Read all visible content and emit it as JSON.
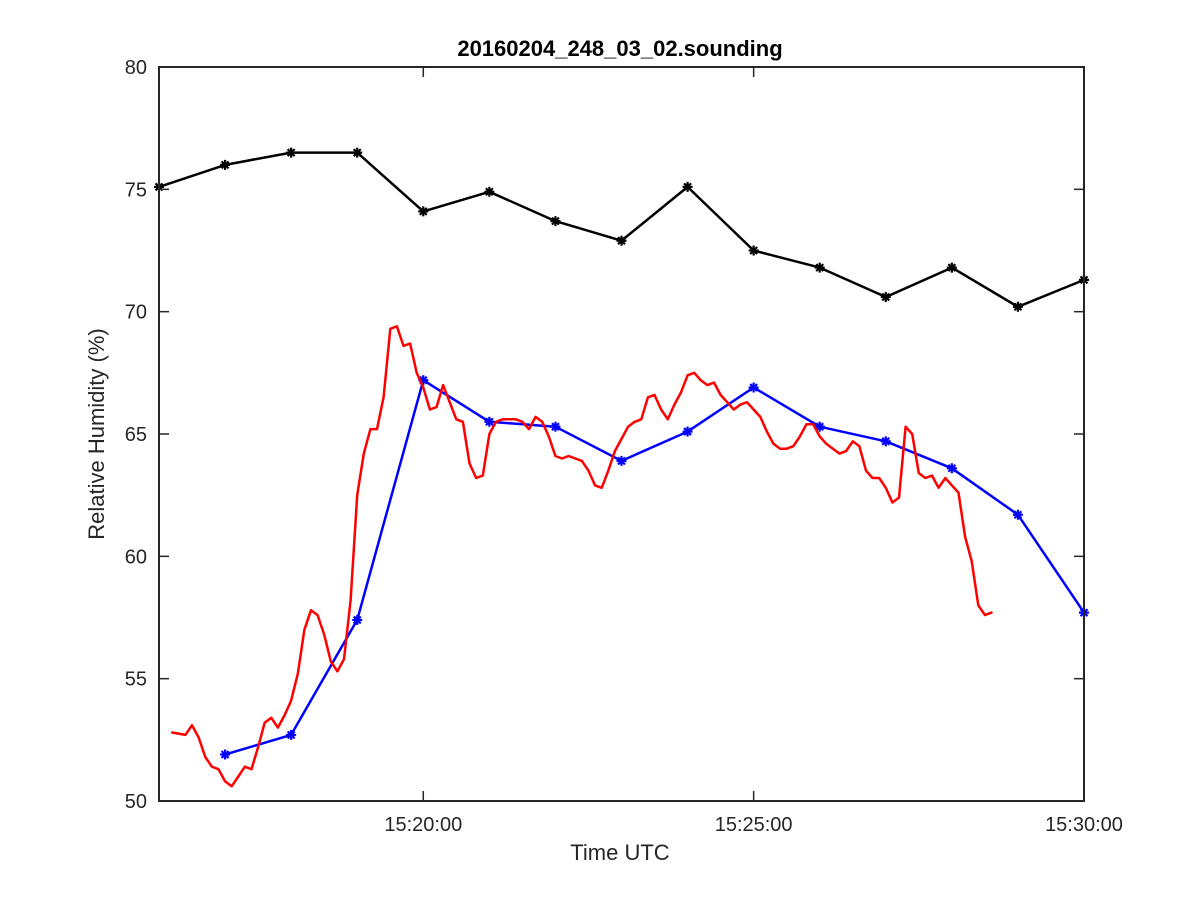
{
  "chart_data": {
    "type": "line",
    "title": "20160204_248_03_02.sounding",
    "xlabel": "Time UTC",
    "ylabel": "Relative Humidity (%)",
    "xlim": [
      "15:16:00",
      "15:30:00"
    ],
    "ylim": [
      50,
      80
    ],
    "x_ticks": [
      "15:20:00",
      "15:25:00",
      "15:30:00"
    ],
    "y_ticks": [
      50,
      55,
      60,
      65,
      70,
      75,
      80
    ],
    "grid": false,
    "legend": "none",
    "series": [
      {
        "color": "#000000",
        "style": "line-marker",
        "points": [
          [
            "15:16:00",
            75.1
          ],
          [
            "15:17:00",
            76.0
          ],
          [
            "15:18:00",
            76.5
          ],
          [
            "15:19:00",
            76.5
          ],
          [
            "15:20:00",
            74.1
          ],
          [
            "15:21:00",
            74.9
          ],
          [
            "15:22:00",
            73.7
          ],
          [
            "15:23:00",
            72.9
          ],
          [
            "15:24:00",
            75.1
          ],
          [
            "15:25:00",
            72.5
          ],
          [
            "15:26:00",
            71.8
          ],
          [
            "15:27:00",
            70.6
          ],
          [
            "15:28:00",
            71.8
          ],
          [
            "15:29:00",
            70.2
          ],
          [
            "15:30:00",
            71.3
          ]
        ]
      },
      {
        "color": "#0000ff",
        "style": "line-marker",
        "points": [
          [
            "15:17:00",
            51.9
          ],
          [
            "15:18:00",
            52.7
          ],
          [
            "15:19:00",
            57.4
          ],
          [
            "15:20:00",
            67.2
          ],
          [
            "15:21:00",
            65.5
          ],
          [
            "15:22:00",
            65.3
          ],
          [
            "15:23:00",
            63.9
          ],
          [
            "15:24:00",
            65.1
          ],
          [
            "15:25:00",
            66.9
          ],
          [
            "15:26:00",
            65.3
          ],
          [
            "15:27:00",
            64.7
          ],
          [
            "15:28:00",
            63.6
          ],
          [
            "15:29:00",
            61.7
          ],
          [
            "15:30:00",
            57.7
          ]
        ]
      },
      {
        "color": "#ff0000",
        "style": "line",
        "points": [
          [
            "15:16:12",
            52.8
          ],
          [
            "15:16:24",
            52.7
          ],
          [
            "15:16:30",
            53.1
          ],
          [
            "15:16:36",
            52.6
          ],
          [
            "15:16:42",
            51.8
          ],
          [
            "15:16:48",
            51.4
          ],
          [
            "15:16:54",
            51.3
          ],
          [
            "15:17:00",
            50.8
          ],
          [
            "15:17:06",
            50.6
          ],
          [
            "15:17:12",
            51.0
          ],
          [
            "15:17:18",
            51.4
          ],
          [
            "15:17:24",
            51.3
          ],
          [
            "15:17:30",
            52.2
          ],
          [
            "15:17:36",
            53.2
          ],
          [
            "15:17:42",
            53.4
          ],
          [
            "15:17:48",
            53.0
          ],
          [
            "15:17:54",
            53.5
          ],
          [
            "15:18:00",
            54.1
          ],
          [
            "15:18:06",
            55.2
          ],
          [
            "15:18:12",
            57.0
          ],
          [
            "15:18:18",
            57.8
          ],
          [
            "15:18:24",
            57.6
          ],
          [
            "15:18:30",
            56.8
          ],
          [
            "15:18:36",
            55.7
          ],
          [
            "15:18:42",
            55.3
          ],
          [
            "15:18:48",
            55.8
          ],
          [
            "15:18:54",
            58.2
          ],
          [
            "15:19:00",
            62.5
          ],
          [
            "15:19:06",
            64.2
          ],
          [
            "15:19:12",
            65.2
          ],
          [
            "15:19:18",
            65.2
          ],
          [
            "15:19:24",
            66.5
          ],
          [
            "15:19:30",
            69.3
          ],
          [
            "15:19:36",
            69.4
          ],
          [
            "15:19:42",
            68.6
          ],
          [
            "15:19:48",
            68.7
          ],
          [
            "15:19:54",
            67.5
          ],
          [
            "15:20:00",
            66.9
          ],
          [
            "15:20:06",
            66.0
          ],
          [
            "15:20:12",
            66.1
          ],
          [
            "15:20:18",
            67.0
          ],
          [
            "15:20:24",
            66.3
          ],
          [
            "15:20:30",
            65.6
          ],
          [
            "15:20:36",
            65.5
          ],
          [
            "15:20:42",
            63.8
          ],
          [
            "15:20:48",
            63.2
          ],
          [
            "15:20:54",
            63.3
          ],
          [
            "15:21:00",
            65.0
          ],
          [
            "15:21:06",
            65.5
          ],
          [
            "15:21:12",
            65.6
          ],
          [
            "15:21:18",
            65.6
          ],
          [
            "15:21:24",
            65.6
          ],
          [
            "15:21:30",
            65.5
          ],
          [
            "15:21:36",
            65.2
          ],
          [
            "15:21:42",
            65.7
          ],
          [
            "15:21:48",
            65.5
          ],
          [
            "15:21:54",
            64.9
          ],
          [
            "15:22:00",
            64.1
          ],
          [
            "15:22:06",
            64.0
          ],
          [
            "15:22:12",
            64.1
          ],
          [
            "15:22:18",
            64.0
          ],
          [
            "15:22:24",
            63.9
          ],
          [
            "15:22:30",
            63.5
          ],
          [
            "15:22:36",
            62.9
          ],
          [
            "15:22:42",
            62.8
          ],
          [
            "15:22:48",
            63.5
          ],
          [
            "15:22:54",
            64.3
          ],
          [
            "15:23:00",
            64.8
          ],
          [
            "15:23:06",
            65.3
          ],
          [
            "15:23:12",
            65.5
          ],
          [
            "15:23:18",
            65.6
          ],
          [
            "15:23:24",
            66.5
          ],
          [
            "15:23:30",
            66.6
          ],
          [
            "15:23:36",
            66.0
          ],
          [
            "15:23:42",
            65.6
          ],
          [
            "15:23:48",
            66.2
          ],
          [
            "15:23:54",
            66.7
          ],
          [
            "15:24:00",
            67.4
          ],
          [
            "15:24:06",
            67.5
          ],
          [
            "15:24:12",
            67.2
          ],
          [
            "15:24:18",
            67.0
          ],
          [
            "15:24:24",
            67.1
          ],
          [
            "15:24:30",
            66.6
          ],
          [
            "15:24:36",
            66.3
          ],
          [
            "15:24:42",
            66.0
          ],
          [
            "15:24:48",
            66.2
          ],
          [
            "15:24:54",
            66.3
          ],
          [
            "15:25:00",
            66.0
          ],
          [
            "15:25:06",
            65.7
          ],
          [
            "15:25:12",
            65.1
          ],
          [
            "15:25:18",
            64.6
          ],
          [
            "15:25:24",
            64.4
          ],
          [
            "15:25:30",
            64.4
          ],
          [
            "15:25:36",
            64.5
          ],
          [
            "15:25:42",
            64.9
          ],
          [
            "15:25:48",
            65.4
          ],
          [
            "15:25:54",
            65.4
          ],
          [
            "15:26:00",
            64.9
          ],
          [
            "15:26:06",
            64.6
          ],
          [
            "15:26:12",
            64.4
          ],
          [
            "15:26:18",
            64.2
          ],
          [
            "15:26:24",
            64.3
          ],
          [
            "15:26:30",
            64.7
          ],
          [
            "15:26:36",
            64.5
          ],
          [
            "15:26:42",
            63.5
          ],
          [
            "15:26:48",
            63.2
          ],
          [
            "15:26:54",
            63.2
          ],
          [
            "15:27:00",
            62.8
          ],
          [
            "15:27:06",
            62.2
          ],
          [
            "15:27:12",
            62.4
          ],
          [
            "15:27:18",
            65.3
          ],
          [
            "15:27:24",
            65.0
          ],
          [
            "15:27:30",
            63.4
          ],
          [
            "15:27:36",
            63.2
          ],
          [
            "15:27:42",
            63.3
          ],
          [
            "15:27:48",
            62.8
          ],
          [
            "15:27:54",
            63.2
          ],
          [
            "15:28:00",
            62.9
          ],
          [
            "15:28:06",
            62.6
          ],
          [
            "15:28:12",
            60.8
          ],
          [
            "15:28:18",
            59.8
          ],
          [
            "15:28:24",
            58.0
          ],
          [
            "15:28:30",
            57.6
          ],
          [
            "15:28:36",
            57.7
          ]
        ]
      }
    ]
  }
}
